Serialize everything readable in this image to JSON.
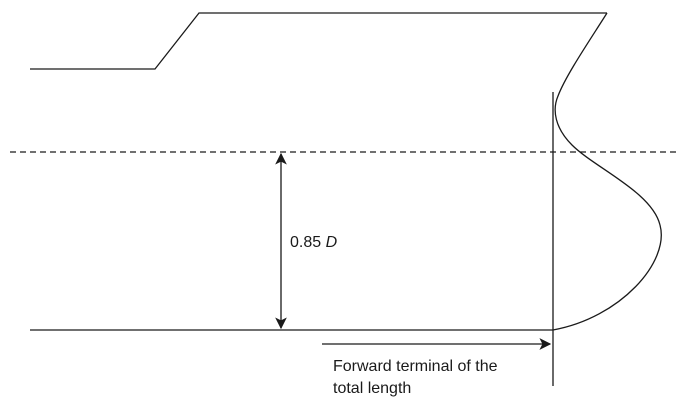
{
  "diagram": {
    "dimension": {
      "value": "0.85",
      "symbol": "D"
    },
    "terminal_label": {
      "line1": "Forward terminal of the",
      "line2": "total length"
    }
  }
}
